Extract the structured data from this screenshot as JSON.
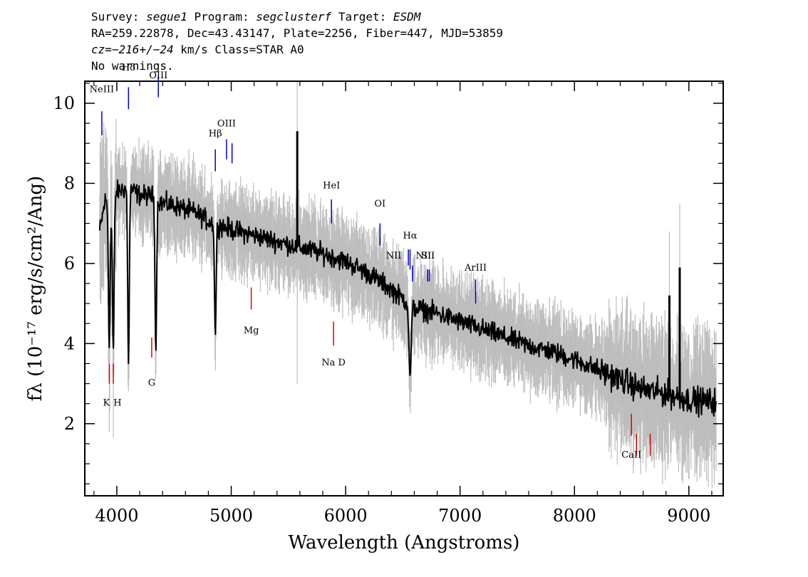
{
  "header": {
    "survey_label": "Survey:",
    "survey": "segue1",
    "program_label": "Program:",
    "program": "segclusterf",
    "target_label": "Target:",
    "target": "ESDM",
    "line2": "RA=259.22878, Dec=43.43147, Plate=2256, Fiber=447, MJD=53859",
    "cz_prefix": "cz=",
    "cz_value": "−216+/−24",
    "cz_suffix": " km/s Class=STAR A0",
    "warnings": "No warnings."
  },
  "colors": {
    "flux": "#000000",
    "error_band": "#bdbdbd",
    "emission_line": "#0000cc",
    "absorption_line": "#dd0000"
  },
  "chart_data": {
    "type": "line",
    "xlabel": "Wavelength (Angstroms)",
    "ylabel": "fλ (10⁻¹⁷ erg/s/cm²/Ang)",
    "xlim": [
      3720,
      9300
    ],
    "ylim": [
      0.2,
      10.55
    ],
    "x_ticks": [
      4000,
      5000,
      6000,
      7000,
      8000,
      9000
    ],
    "y_ticks": [
      2,
      4,
      6,
      8,
      10
    ],
    "grid": false,
    "series": [
      {
        "role": "flux",
        "x": [
          3850,
          3900,
          3950,
          4000,
          4100,
          4200,
          4300,
          4400,
          4500,
          4600,
          4700,
          4800,
          4900,
          5000,
          5200,
          5400,
          5600,
          5800,
          6000,
          6200,
          6400,
          6600,
          6800,
          7000,
          7200,
          7400,
          7600,
          7800,
          8000,
          8200,
          8400,
          8600,
          8800,
          9000,
          9240
        ],
        "y": [
          6.8,
          7.6,
          7.2,
          7.8,
          7.9,
          7.7,
          7.7,
          7.5,
          7.45,
          7.35,
          7.25,
          7.05,
          6.95,
          6.85,
          6.7,
          6.55,
          6.4,
          6.25,
          6.05,
          5.75,
          5.35,
          4.9,
          4.75,
          4.55,
          4.35,
          4.15,
          3.95,
          3.8,
          3.6,
          3.35,
          3.1,
          2.85,
          2.75,
          2.6,
          2.55
        ]
      }
    ],
    "absorption_features": [
      {
        "wavelength": 3934,
        "depth": 3.9
      },
      {
        "wavelength": 3969,
        "depth": 3.85
      },
      {
        "wavelength": 4102,
        "depth": 3.5
      },
      {
        "wavelength": 4341,
        "depth": 3.8
      },
      {
        "wavelength": 4861,
        "depth": 4.2
      },
      {
        "wavelength": 6563,
        "depth": 3.2
      }
    ],
    "spikes": [
      {
        "wavelength": 5577,
        "flux": 9.3
      },
      {
        "wavelength": 8830,
        "flux": 5.2
      },
      {
        "wavelength": 8920,
        "flux": 5.9
      }
    ],
    "line_markers": [
      {
        "label": "NeIII",
        "wavelength": 3869,
        "kind": "emission"
      },
      {
        "label": "Hδ",
        "wavelength": 4102,
        "kind": "emission"
      },
      {
        "label": "OIII",
        "wavelength": 4363,
        "kind": "emission"
      },
      {
        "label": "Hβ",
        "wavelength": 4861,
        "kind": "emission"
      },
      {
        "label": "OIII",
        "wavelength": 4959,
        "kind": "emission"
      },
      {
        "label": "OIII",
        "wavelength": 5007,
        "kind": "emission"
      },
      {
        "label": "HeI",
        "wavelength": 5876,
        "kind": "emission"
      },
      {
        "label": "OI",
        "wavelength": 6300,
        "kind": "emission"
      },
      {
        "label": "NII",
        "wavelength": 6548,
        "kind": "emission"
      },
      {
        "label": "Hα",
        "wavelength": 6563,
        "kind": "emission"
      },
      {
        "label": "NII",
        "wavelength": 6584,
        "kind": "emission"
      },
      {
        "label": "SII",
        "wavelength": 6717,
        "kind": "emission"
      },
      {
        "label": "SII",
        "wavelength": 6731,
        "kind": "emission"
      },
      {
        "label": "ArIII",
        "wavelength": 7136,
        "kind": "emission"
      },
      {
        "label": "K",
        "wavelength": 3934,
        "kind": "absorption"
      },
      {
        "label": "H",
        "wavelength": 3969,
        "kind": "absorption"
      },
      {
        "label": "G",
        "wavelength": 4305,
        "kind": "absorption"
      },
      {
        "label": "Mg",
        "wavelength": 5175,
        "kind": "absorption"
      },
      {
        "label": "Na D",
        "wavelength": 5894,
        "kind": "absorption"
      },
      {
        "label": "CaII",
        "wavelength": 8498,
        "kind": "absorption"
      },
      {
        "label": "CaII",
        "wavelength": 8542,
        "kind": "absorption"
      },
      {
        "label": "CaII",
        "wavelength": 8662,
        "kind": "absorption"
      }
    ]
  }
}
